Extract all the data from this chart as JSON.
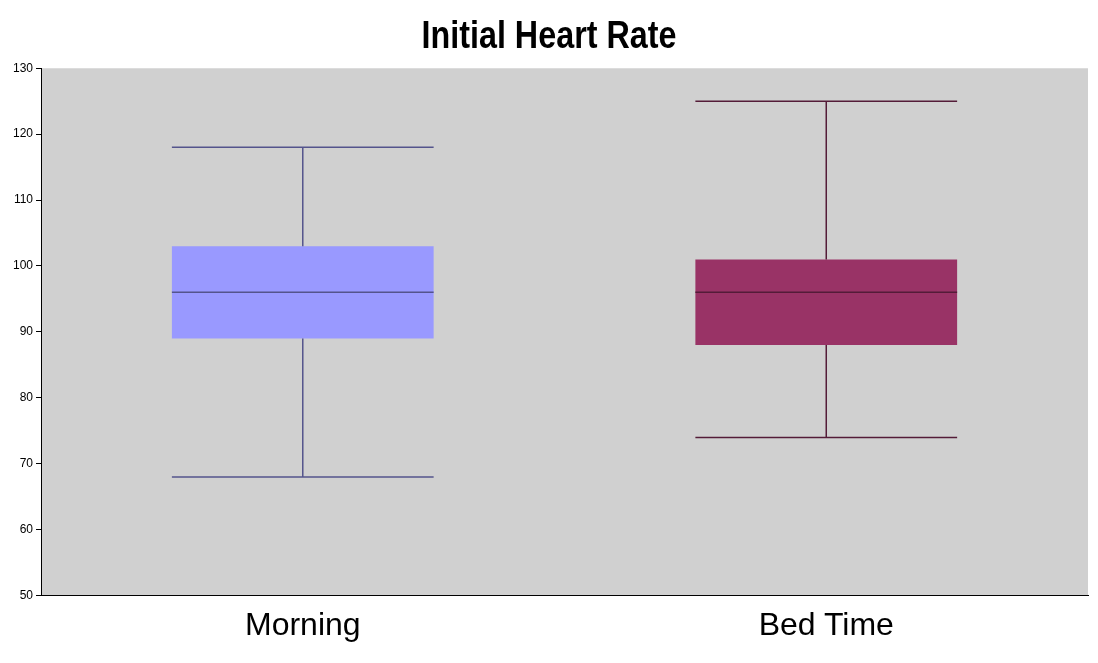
{
  "chart_data": {
    "type": "box",
    "title": "Initial Heart Rate",
    "categories": [
      "Morning",
      "Bed Time"
    ],
    "boxes": [
      {
        "low": 68,
        "q1": 89,
        "median": 96,
        "q3": 103,
        "high": 118
      },
      {
        "low": 74,
        "q1": 88,
        "median": 96,
        "q3": 101,
        "high": 125
      }
    ],
    "colors": [
      "#9999ff",
      "#993366"
    ],
    "ylim": [
      50,
      130
    ],
    "yticks": [
      50,
      60,
      70,
      80,
      90,
      100,
      110,
      120,
      130
    ],
    "grid": false,
    "legend": false
  }
}
